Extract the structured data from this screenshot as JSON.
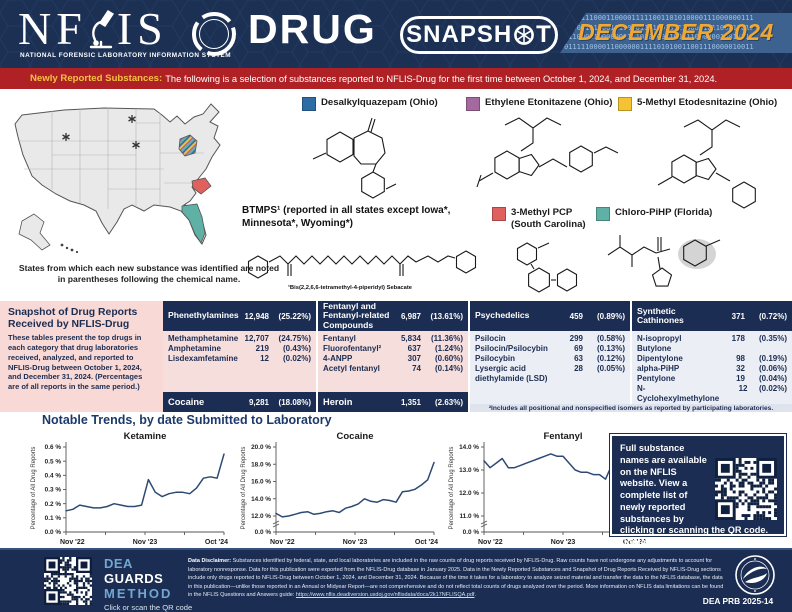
{
  "colors": {
    "navy": "#1b2d52",
    "banner_red": "#b02126",
    "gold": "#f0a832",
    "pink_panel": "#f8d9d6",
    "body_pink": "#f6dedd",
    "body_lavender": "#eceef5",
    "footnote_bg": "#dfe3ee",
    "legend_blue": "#2e6da4",
    "legend_purple": "#a4699e",
    "legend_yellow": "#f5c331",
    "legend_red": "#e0605e",
    "legend_teal": "#5fb0a5",
    "chart_line": "#2d4a73"
  },
  "header": {
    "logo_left": "NF",
    "logo_right": "IS",
    "logo_sub": "NATIONAL FORENSIC LABORATORY INFORMATION SYSTEM",
    "drug": "DRUG",
    "snapshot_a": "SNAPSH",
    "snapshot_b": "T",
    "issue": "DECEMBER 2024",
    "binary": [
      "100111100011000011111001101010000111000000111",
      "100011110001111000110100101110001101100011010",
      "111000110000001111010100110011100000010011111",
      "011111000011000000111101010011001110000010011"
    ]
  },
  "banner": {
    "label": "Newly Reported Substances:",
    "text": "The following is a selection of substances reported to NFLIS-Drug for the first time between October 1, 2024, and December 31, 2024."
  },
  "map": {
    "caption": "States from which each new substance was identified are noted in parentheses following the chemical name.",
    "asterisk_states": [
      "Iowa",
      "Minnesota",
      "Wyoming"
    ],
    "highlighted_states": [
      "Ohio",
      "South Carolina",
      "Florida"
    ]
  },
  "legend": [
    {
      "label": "Desalkylquazepam (Ohio)",
      "color": "#2e6da4"
    },
    {
      "label": "Ethylene Etonitazene (Ohio)",
      "color": "#a4699e"
    },
    {
      "label": "5-Methyl Etodesnitazine (Ohio)",
      "color": "#f5c331"
    },
    {
      "label": "3-Methyl PCP (South Carolina)",
      "color": "#e0605e"
    },
    {
      "label": "Chloro-PiHP (Florida)",
      "color": "#5fb0a5"
    }
  ],
  "btmps": {
    "line": "BTMPS¹ (reported in all states except Iowa*, Minnesota*, Wyoming*)",
    "footnote": "¹Bis(2,2,6,6-tetramethyl-4-piperidyl) Sebacate"
  },
  "snapshot": {
    "title": "Snapshot of Drug Reports Received by NFLIS-Drug",
    "description": "These tables present the top drugs in each category that drug laboratories received, analyzed, and reported to NFLIS-Drug between October 1, 2024, and December 31, 2024. (Percentages are of all reports in the same period.)",
    "footnote": "²Includes all positional and nonspecified isomers as reported by participating laboratories.",
    "tables": [
      {
        "header": {
          "name": "Phenethylamines",
          "count": "12,948",
          "pct": "(25.22%)"
        },
        "rows": [
          {
            "name": "Methamphetamine",
            "count": "12,707",
            "pct": "(24.75%)"
          },
          {
            "name": "Amphetamine",
            "count": "219",
            "pct": "(0.43%)"
          },
          {
            "name": "Lisdexamfetamine",
            "count": "12",
            "pct": "(0.02%)"
          }
        ],
        "footer": {
          "name": "Cocaine",
          "count": "9,281",
          "pct": "(18.08%)"
        }
      },
      {
        "header": {
          "name": "Fentanyl and Fentanyl-related Compounds",
          "count": "6,987",
          "pct": "(13.61%)"
        },
        "rows": [
          {
            "name": "Fentanyl",
            "count": "5,834",
            "pct": "(11.36%)"
          },
          {
            "name": "Fluorofentanyl²",
            "count": "637",
            "pct": "(1.24%)"
          },
          {
            "name": "4-ANPP",
            "count": "307",
            "pct": "(0.60%)"
          },
          {
            "name": "Acetyl fentanyl",
            "count": "74",
            "pct": "(0.14%)"
          }
        ],
        "footer": {
          "name": "Heroin",
          "count": "1,351",
          "pct": "(2.63%)"
        }
      },
      {
        "header": {
          "name": "Psychedelics",
          "count": "459",
          "pct": "(0.89%)"
        },
        "rows": [
          {
            "name": "Psilocin",
            "count": "299",
            "pct": "(0.58%)"
          },
          {
            "name": "Psilocin/Psilocybin",
            "count": "69",
            "pct": "(0.13%)"
          },
          {
            "name": "Psilocybin",
            "count": "63",
            "pct": "(0.12%)"
          },
          {
            "name": "Lysergic acid diethylamide (LSD)",
            "count": "28",
            "pct": "(0.05%)"
          }
        ]
      },
      {
        "header": {
          "name": "Synthetic Cathinones",
          "count": "371",
          "pct": "(0.72%)"
        },
        "rows": [
          {
            "name": "N-isopropyl Butylone",
            "count": "178",
            "pct": "(0.35%)"
          },
          {
            "name": "Dipentylone",
            "count": "98",
            "pct": "(0.19%)"
          },
          {
            "name": "alpha-PiHP",
            "count": "32",
            "pct": "(0.06%)"
          },
          {
            "name": "Pentylone",
            "count": "19",
            "pct": "(0.04%)"
          },
          {
            "name": "N-Cyclohexylmethylone",
            "count": "12",
            "pct": "(0.02%)"
          }
        ]
      }
    ]
  },
  "trends": {
    "title": "Notable Trends, by date Submitted to Laboratory"
  },
  "chart_data": [
    {
      "type": "line",
      "title": "Ketamine",
      "ylabel": "Percentage of All Drug Reports",
      "x_ticks": [
        "Nov '22",
        "Nov '23",
        "Oct '24"
      ],
      "ylim": [
        0,
        0.6
      ],
      "y_tick_step": 0.1,
      "axis_break": false,
      "values": [
        0.15,
        0.16,
        0.19,
        0.18,
        0.17,
        0.17,
        0.18,
        0.2,
        0.19,
        0.18,
        0.18,
        0.19,
        0.37,
        0.28,
        0.25,
        0.27,
        0.28,
        0.28,
        0.27,
        0.31,
        0.38,
        0.39,
        0.38,
        0.55
      ]
    },
    {
      "type": "line",
      "title": "Cocaine",
      "ylabel": "Percentage of All Drug Reports",
      "x_ticks": [
        "Nov '22",
        "Nov '23",
        "Oct '24"
      ],
      "ylim": [
        12,
        20
      ],
      "y_tick_step": 2,
      "axis_break": true,
      "values": [
        12.3,
        11.9,
        12.0,
        12.2,
        12.4,
        12.5,
        12.2,
        12.3,
        12.5,
        12.6,
        12.4,
        12.9,
        13.1,
        13.4,
        14.0,
        13.7,
        13.6,
        13.9,
        13.8,
        13.6,
        14.8,
        14.9,
        15.1,
        15.6,
        16.2,
        18.2
      ]
    },
    {
      "type": "line",
      "title": "Fentanyl",
      "ylabel": "Percentage of All Drug Reports",
      "x_ticks": [
        "Nov '22",
        "Nov '23",
        "Oct '24"
      ],
      "ylim": [
        11,
        14
      ],
      "y_tick_step": 1,
      "axis_break": true,
      "values": [
        13.4,
        13.1,
        13.3,
        13.5,
        13.1,
        13.1,
        13.2,
        13.3,
        13.4,
        13.5,
        13.6,
        13.7,
        13.6,
        13.6,
        13.3,
        13.0,
        12.9,
        12.9,
        12.8,
        12.8,
        12.6,
        13.2,
        12.8,
        12.3,
        11.9,
        11.7,
        11.7
      ]
    }
  ],
  "info_box": {
    "text_before": "Full substance names are available on the NFLIS website. View a complete list of newly reported substances by clicking or scanning the QR code. Contact us at ",
    "link": "NFLIS@dea.gov",
    "suffix": "."
  },
  "footer": {
    "guards": {
      "dea": "DEA",
      "guards": "GUARDS",
      "method": "METHOD",
      "caption": "Click or scan the QR code to learn more about GUARDS."
    },
    "disclaimer_label": "Data Disclaimer:",
    "disclaimer_text": "Substances identified by federal, state, and local laboratories are included in the raw counts of drug reports received by NFLIS-Drug. Raw counts have not undergone any adjustments to account for laboratory nonresponse. Data for this publication were exported from the NFLIS-Drug database in January 2025. Data in the Newly Reported Substances and Snapshot of Drug Reports Received by NFLIS-Drug sections include only drugs reported to NFLIS-Drug between October 1, 2024, and December 31, 2024. Because of the time it takes for a laboratory to analyze seized material and transfer the data to the NFLIS database, the data in this publication—unlike those reported in an Annual or Midyear Report—are not comprehensive and do not reflect total counts of drugs analyzed over the period. More information on NFLIS data limitations can be found in the NFLIS Questions and Answers guide: ",
    "disclaimer_link": "https://www.nflis.deadiversion.usdoj.gov/nflisdata/docs/2k17NFLISQA.pdf",
    "disclaimer_suffix": ".",
    "prb": "DEA PRB 2025-14"
  }
}
